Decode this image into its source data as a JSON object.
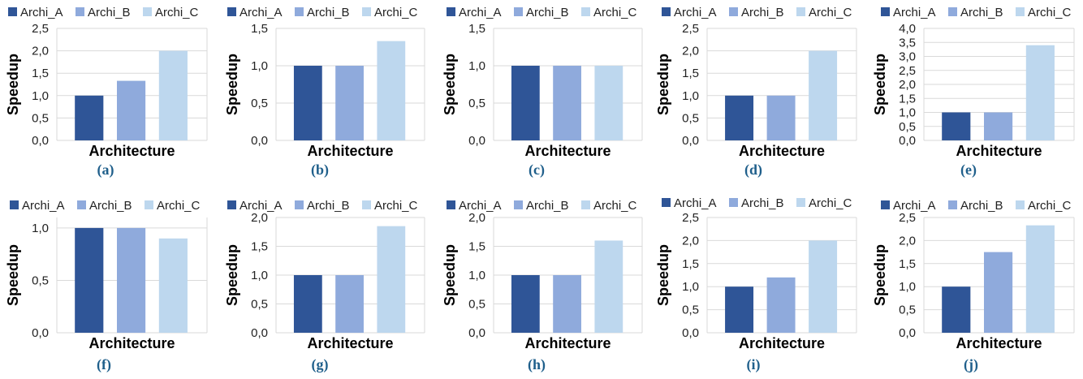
{
  "colors": {
    "Archi_A": "#2f5597",
    "Archi_B": "#8faadc",
    "Archi_C": "#bdd7ee",
    "grid": "#d9d9d9",
    "label": "#1f5f8b"
  },
  "chart_data": [
    {
      "panel": "(a)",
      "type": "bar",
      "categories": [
        "Archi_A",
        "Archi_B",
        "Archi_C"
      ],
      "values": [
        1.0,
        1.33,
        2.0
      ],
      "ylim": [
        0,
        2.5
      ],
      "yticks": [
        "0,0",
        "0,5",
        "1,0",
        "1,5",
        "2,0",
        "2,5"
      ],
      "xlabel": "Architecture",
      "ylabel": "Speedup",
      "grid": true,
      "legend": "top"
    },
    {
      "panel": "(b)",
      "type": "bar",
      "categories": [
        "Archi_A",
        "Archi_B",
        "Archi_C"
      ],
      "values": [
        1.0,
        1.0,
        1.33
      ],
      "ylim": [
        0,
        1.5
      ],
      "yticks": [
        "0,0",
        "0,5",
        "1,0",
        "1,5"
      ],
      "xlabel": "Architecture",
      "ylabel": "Speedup",
      "grid": true,
      "legend": "top"
    },
    {
      "panel": "(c)",
      "type": "bar",
      "categories": [
        "Archi_A",
        "Archi_B",
        "Archi_C"
      ],
      "values": [
        1.0,
        1.0,
        1.0
      ],
      "ylim": [
        0,
        1.5
      ],
      "yticks": [
        "0,0",
        "0,5",
        "1,0",
        "1,5"
      ],
      "xlabel": "Architecture",
      "ylabel": "Speedup",
      "grid": true,
      "legend": "top"
    },
    {
      "panel": "(d)",
      "type": "bar",
      "categories": [
        "Archi_A",
        "Archi_B",
        "Archi_C"
      ],
      "values": [
        1.0,
        1.0,
        2.0
      ],
      "ylim": [
        0,
        2.5
      ],
      "yticks": [
        "0,0",
        "0,5",
        "1,0",
        "1,5",
        "2,0",
        "2,5"
      ],
      "xlabel": "Architecture",
      "ylabel": "Speedup",
      "grid": true,
      "legend": "top"
    },
    {
      "panel": "(e)",
      "type": "bar",
      "categories": [
        "Archi_A",
        "Archi_B",
        "Archi_C"
      ],
      "values": [
        1.0,
        1.0,
        3.4
      ],
      "ylim": [
        0,
        4.0
      ],
      "yticks": [
        "0,0",
        "0,5",
        "1,0",
        "1,5",
        "2,0",
        "2,5",
        "3,0",
        "3,5",
        "4,0"
      ],
      "xlabel": "Architecture",
      "ylabel": "Speedup",
      "grid": true,
      "legend": "top"
    },
    {
      "panel": "(f)",
      "type": "bar",
      "categories": [
        "Archi_A",
        "Archi_B",
        "Archi_C"
      ],
      "values": [
        1.0,
        1.0,
        0.9
      ],
      "ylim": [
        0,
        1.1
      ],
      "yticks": [
        "0,0",
        "0,5",
        "1,0"
      ],
      "ytickvals": [
        0,
        0.5,
        1.0
      ],
      "xlabel": "Architecture",
      "ylabel": "Speedup",
      "grid": true,
      "legend": "top"
    },
    {
      "panel": "(g)",
      "type": "bar",
      "categories": [
        "Archi_A",
        "Archi_B",
        "Archi_C"
      ],
      "values": [
        1.0,
        1.0,
        1.85
      ],
      "ylim": [
        0,
        2.0
      ],
      "yticks": [
        "0,0",
        "0,5",
        "1,0",
        "1,5",
        "2,0"
      ],
      "xlabel": "Architecture",
      "ylabel": "Speedup",
      "grid": true,
      "legend": "top"
    },
    {
      "panel": "(h)",
      "type": "bar",
      "categories": [
        "Archi_A",
        "Archi_B",
        "Archi_C"
      ],
      "values": [
        1.0,
        1.0,
        1.6
      ],
      "ylim": [
        0,
        2.0
      ],
      "yticks": [
        "0,0",
        "0,5",
        "1,0",
        "1,5",
        "2,0"
      ],
      "xlabel": "Architecture",
      "ylabel": "Speedup",
      "grid": true,
      "legend": "top"
    },
    {
      "panel": "(i)",
      "type": "bar",
      "categories": [
        "Archi_A",
        "Archi_B",
        "Archi_C"
      ],
      "values": [
        1.0,
        1.2,
        2.0
      ],
      "ylim": [
        0,
        2.5
      ],
      "yticks": [
        "0,0",
        "0,5",
        "1,0",
        "1,5",
        "2,0",
        "2,5"
      ],
      "xlabel": "Architecture",
      "ylabel": "Speedup",
      "grid": true,
      "legend": "top"
    },
    {
      "panel": "(j)",
      "type": "bar",
      "categories": [
        "Archi_A",
        "Archi_B",
        "Archi_C"
      ],
      "values": [
        1.0,
        1.75,
        2.33
      ],
      "ylim": [
        0,
        2.5
      ],
      "yticks": [
        "0,0",
        "0,5",
        "1,0",
        "1,5",
        "2,0",
        "2,5"
      ],
      "xlabel": "Architecture",
      "ylabel": "Speedup",
      "grid": true,
      "legend": "top"
    }
  ]
}
